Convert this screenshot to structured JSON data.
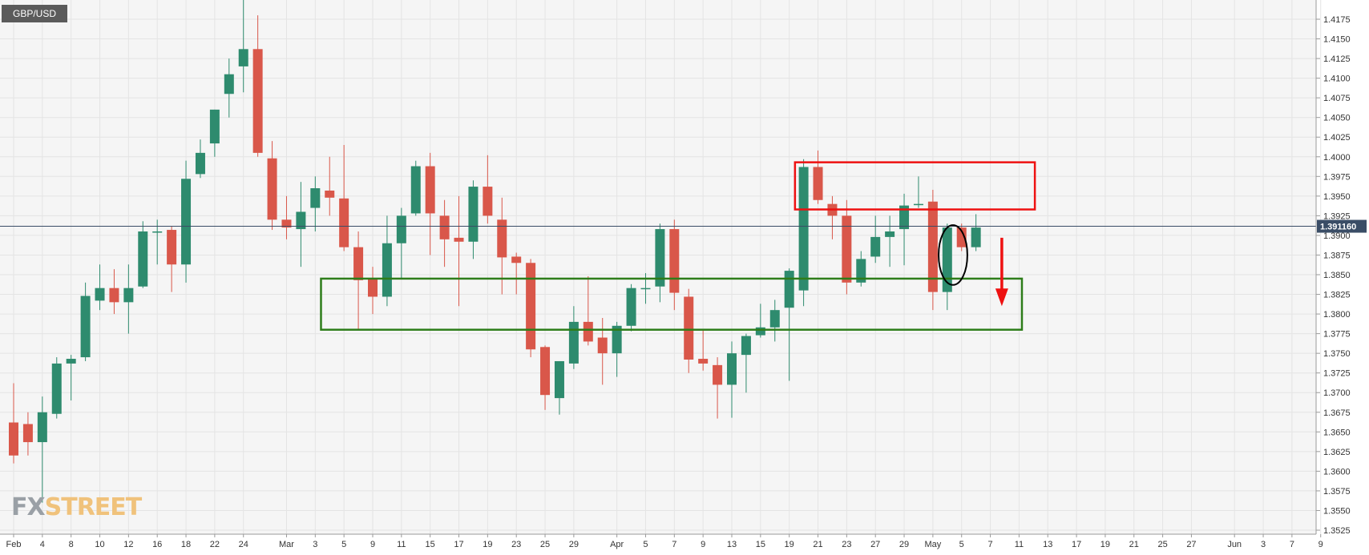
{
  "symbol": "GBP/USD",
  "watermark": {
    "fx": "FX",
    "street": "STREET"
  },
  "colors": {
    "bull": "#2e8b6e",
    "bear": "#d9574a",
    "background": "#f5f5f5",
    "grid": "#e4e4e4",
    "price_line": "#3a4d66",
    "support_box": "#2e7d1a",
    "resistance_box": "#ee1111",
    "arrow": "#ee1111",
    "ellipse": "#000000",
    "watermark_fx": "#9aa0a6",
    "watermark_street": "#f0c27b"
  },
  "chart_data": {
    "type": "candlestick",
    "ylim": [
      1.3525,
      1.42
    ],
    "y_ticks": [
      "1.4175",
      "1.4150",
      "1.4125",
      "1.4100",
      "1.4075",
      "1.4050",
      "1.4025",
      "1.4000",
      "1.3975",
      "1.3950",
      "1.3925",
      "1.3900",
      "1.3875",
      "1.3850",
      "1.3825",
      "1.3800",
      "1.3775",
      "1.3750",
      "1.3725",
      "1.3700",
      "1.3675",
      "1.3650",
      "1.3625",
      "1.3600",
      "1.3575",
      "1.3550",
      "1.3525"
    ],
    "x_ticks": [
      {
        "label": "Feb",
        "index": 0
      },
      {
        "label": "4",
        "index": 2
      },
      {
        "label": "8",
        "index": 4
      },
      {
        "label": "10",
        "index": 6
      },
      {
        "label": "12",
        "index": 8
      },
      {
        "label": "16",
        "index": 10
      },
      {
        "label": "18",
        "index": 12
      },
      {
        "label": "22",
        "index": 14
      },
      {
        "label": "24",
        "index": 16
      },
      {
        "label": "Mar",
        "index": 19
      },
      {
        "label": "3",
        "index": 21
      },
      {
        "label": "5",
        "index": 23
      },
      {
        "label": "9",
        "index": 25
      },
      {
        "label": "11",
        "index": 27
      },
      {
        "label": "15",
        "index": 29
      },
      {
        "label": "17",
        "index": 31
      },
      {
        "label": "19",
        "index": 33
      },
      {
        "label": "23",
        "index": 35
      },
      {
        "label": "25",
        "index": 37
      },
      {
        "label": "29",
        "index": 39
      },
      {
        "label": "Apr",
        "index": 42
      },
      {
        "label": "5",
        "index": 44
      },
      {
        "label": "7",
        "index": 46
      },
      {
        "label": "9",
        "index": 48
      },
      {
        "label": "13",
        "index": 50
      },
      {
        "label": "15",
        "index": 52
      },
      {
        "label": "19",
        "index": 54
      },
      {
        "label": "21",
        "index": 56
      },
      {
        "label": "23",
        "index": 58
      },
      {
        "label": "27",
        "index": 60
      },
      {
        "label": "29",
        "index": 62
      },
      {
        "label": "May",
        "index": 64
      },
      {
        "label": "5",
        "index": 66
      },
      {
        "label": "7",
        "index": 68
      },
      {
        "label": "11",
        "index": 70
      },
      {
        "label": "13",
        "index": 72
      },
      {
        "label": "17",
        "index": 74
      },
      {
        "label": "19",
        "index": 76
      },
      {
        "label": "21",
        "index": 78
      },
      {
        "label": "25",
        "index": 80
      },
      {
        "label": "27",
        "index": 82
      },
      {
        "label": "Jun",
        "index": 85
      },
      {
        "label": "3",
        "index": 87
      },
      {
        "label": "7",
        "index": 89
      },
      {
        "label": "9",
        "index": 91
      }
    ],
    "candles": [
      {
        "o": 1.3662,
        "h": 1.3712,
        "l": 1.361,
        "c": 1.362
      },
      {
        "o": 1.366,
        "h": 1.3675,
        "l": 1.362,
        "c": 1.3637
      },
      {
        "o": 1.3637,
        "h": 1.3695,
        "l": 1.356,
        "c": 1.3675
      },
      {
        "o": 1.3673,
        "h": 1.3745,
        "l": 1.3667,
        "c": 1.3737
      },
      {
        "o": 1.3737,
        "h": 1.3748,
        "l": 1.369,
        "c": 1.3743
      },
      {
        "o": 1.3745,
        "h": 1.384,
        "l": 1.374,
        "c": 1.3823
      },
      {
        "o": 1.3817,
        "h": 1.3863,
        "l": 1.3805,
        "c": 1.3833
      },
      {
        "o": 1.3833,
        "h": 1.3857,
        "l": 1.38,
        "c": 1.3815
      },
      {
        "o": 1.3815,
        "h": 1.3863,
        "l": 1.3775,
        "c": 1.3833
      },
      {
        "o": 1.3835,
        "h": 1.3918,
        "l": 1.3833,
        "c": 1.3905
      },
      {
        "o": 1.3905,
        "h": 1.392,
        "l": 1.3863,
        "c": 1.3905
      },
      {
        "o": 1.3907,
        "h": 1.3912,
        "l": 1.3828,
        "c": 1.3863
      },
      {
        "o": 1.3863,
        "h": 1.3995,
        "l": 1.384,
        "c": 1.3972
      },
      {
        "o": 1.3978,
        "h": 1.4022,
        "l": 1.3973,
        "c": 1.4005
      },
      {
        "o": 1.4017,
        "h": 1.406,
        "l": 1.4,
        "c": 1.406
      },
      {
        "o": 1.408,
        "h": 1.4125,
        "l": 1.405,
        "c": 1.4105
      },
      {
        "o": 1.4115,
        "h": 1.42,
        "l": 1.4082,
        "c": 1.4137
      },
      {
        "o": 1.4137,
        "h": 1.418,
        "l": 1.4,
        "c": 1.4005
      },
      {
        "o": 1.3998,
        "h": 1.402,
        "l": 1.3907,
        "c": 1.392
      },
      {
        "o": 1.392,
        "h": 1.395,
        "l": 1.3895,
        "c": 1.391
      },
      {
        "o": 1.3908,
        "h": 1.3968,
        "l": 1.386,
        "c": 1.393
      },
      {
        "o": 1.3935,
        "h": 1.3975,
        "l": 1.3905,
        "c": 1.396
      },
      {
        "o": 1.3957,
        "h": 1.4,
        "l": 1.3925,
        "c": 1.3948
      },
      {
        "o": 1.3947,
        "h": 1.4015,
        "l": 1.388,
        "c": 1.3885
      },
      {
        "o": 1.3885,
        "h": 1.3905,
        "l": 1.378,
        "c": 1.3843
      },
      {
        "o": 1.3845,
        "h": 1.386,
        "l": 1.38,
        "c": 1.3822
      },
      {
        "o": 1.3822,
        "h": 1.3925,
        "l": 1.381,
        "c": 1.389
      },
      {
        "o": 1.389,
        "h": 1.3935,
        "l": 1.3845,
        "c": 1.3925
      },
      {
        "o": 1.3928,
        "h": 1.3995,
        "l": 1.3925,
        "c": 1.3988
      },
      {
        "o": 1.3988,
        "h": 1.4005,
        "l": 1.3875,
        "c": 1.3928
      },
      {
        "o": 1.3925,
        "h": 1.3945,
        "l": 1.386,
        "c": 1.3895
      },
      {
        "o": 1.3897,
        "h": 1.395,
        "l": 1.381,
        "c": 1.3892
      },
      {
        "o": 1.3892,
        "h": 1.397,
        "l": 1.387,
        "c": 1.3962
      },
      {
        "o": 1.3962,
        "h": 1.4002,
        "l": 1.3915,
        "c": 1.3925
      },
      {
        "o": 1.392,
        "h": 1.3948,
        "l": 1.3825,
        "c": 1.3872
      },
      {
        "o": 1.3873,
        "h": 1.3878,
        "l": 1.3825,
        "c": 1.3865
      },
      {
        "o": 1.3865,
        "h": 1.387,
        "l": 1.3745,
        "c": 1.3755
      },
      {
        "o": 1.3758,
        "h": 1.376,
        "l": 1.3678,
        "c": 1.3697
      },
      {
        "o": 1.3693,
        "h": 1.374,
        "l": 1.3672,
        "c": 1.374
      },
      {
        "o": 1.3737,
        "h": 1.381,
        "l": 1.373,
        "c": 1.379
      },
      {
        "o": 1.379,
        "h": 1.3848,
        "l": 1.376,
        "c": 1.3765
      },
      {
        "o": 1.377,
        "h": 1.3795,
        "l": 1.371,
        "c": 1.375
      },
      {
        "o": 1.375,
        "h": 1.379,
        "l": 1.372,
        "c": 1.3785
      },
      {
        "o": 1.3785,
        "h": 1.3838,
        "l": 1.3778,
        "c": 1.3833
      },
      {
        "o": 1.3833,
        "h": 1.3852,
        "l": 1.3813,
        "c": 1.3833
      },
      {
        "o": 1.3835,
        "h": 1.3915,
        "l": 1.3815,
        "c": 1.3908
      },
      {
        "o": 1.3908,
        "h": 1.392,
        "l": 1.3805,
        "c": 1.3827
      },
      {
        "o": 1.3822,
        "h": 1.3832,
        "l": 1.3725,
        "c": 1.3742
      },
      {
        "o": 1.3743,
        "h": 1.378,
        "l": 1.3728,
        "c": 1.3737
      },
      {
        "o": 1.3735,
        "h": 1.3745,
        "l": 1.3667,
        "c": 1.371
      },
      {
        "o": 1.371,
        "h": 1.3765,
        "l": 1.3668,
        "c": 1.375
      },
      {
        "o": 1.3748,
        "h": 1.3775,
        "l": 1.37,
        "c": 1.3772
      },
      {
        "o": 1.3773,
        "h": 1.3813,
        "l": 1.377,
        "c": 1.3783
      },
      {
        "o": 1.3783,
        "h": 1.3818,
        "l": 1.3765,
        "c": 1.3805
      },
      {
        "o": 1.3808,
        "h": 1.3858,
        "l": 1.3715,
        "c": 1.3855
      },
      {
        "o": 1.383,
        "h": 1.3997,
        "l": 1.381,
        "c": 1.3987
      },
      {
        "o": 1.3987,
        "h": 1.4008,
        "l": 1.394,
        "c": 1.3945
      },
      {
        "o": 1.394,
        "h": 1.395,
        "l": 1.3895,
        "c": 1.3925
      },
      {
        "o": 1.3925,
        "h": 1.3945,
        "l": 1.3825,
        "c": 1.384
      },
      {
        "o": 1.384,
        "h": 1.388,
        "l": 1.3835,
        "c": 1.387
      },
      {
        "o": 1.3873,
        "h": 1.3925,
        "l": 1.3865,
        "c": 1.3898
      },
      {
        "o": 1.3898,
        "h": 1.3925,
        "l": 1.386,
        "c": 1.3905
      },
      {
        "o": 1.3908,
        "h": 1.3953,
        "l": 1.3862,
        "c": 1.3938
      },
      {
        "o": 1.394,
        "h": 1.3975,
        "l": 1.3935,
        "c": 1.394
      },
      {
        "o": 1.3943,
        "h": 1.3958,
        "l": 1.3805,
        "c": 1.3828
      },
      {
        "o": 1.3828,
        "h": 1.3915,
        "l": 1.3805,
        "c": 1.391
      },
      {
        "o": 1.391,
        "h": 1.3915,
        "l": 1.388,
        "c": 1.3885
      },
      {
        "o": 1.3885,
        "h": 1.3927,
        "l": 1.388,
        "c": 1.391
      }
    ],
    "current_price": {
      "label": "1.391160",
      "value": 1.39116
    },
    "annotations": [
      {
        "kind": "resistance-box",
        "i0": 54.4,
        "i1": 71.1,
        "y0": 1.3993,
        "y1": 1.3933
      },
      {
        "kind": "support-box",
        "i0": 21.4,
        "i1": 70.2,
        "y0": 1.3845,
        "y1": 1.378
      },
      {
        "kind": "ellipse",
        "ci": 65.4,
        "cy": 1.3875,
        "ri": 1.0,
        "ry": 0.0038
      },
      {
        "kind": "arrow",
        "i": 68.8,
        "y0": 1.3897,
        "y1": 1.381
      }
    ]
  }
}
